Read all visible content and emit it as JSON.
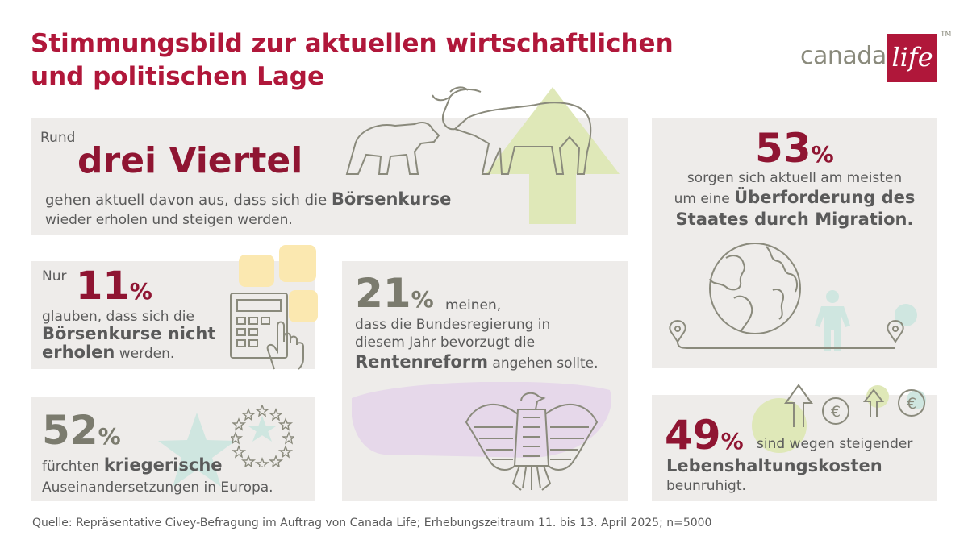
{
  "title": "Stimmungsbild zur aktuellen wirtschaftlichen und politischen Lage",
  "logo": {
    "text": "canada",
    "box": "life",
    "tm": "TM"
  },
  "card1": {
    "intro": "Rund",
    "headline": "drei Viertel",
    "line1": "gehen aktuell davon aus, dass sich die ",
    "line1_bold": "Börsenkurse",
    "line2": "wieder erholen und steigen werden."
  },
  "card2": {
    "intro": "Nur",
    "number": "11",
    "pct": "%",
    "line1": "glauben, dass sich die",
    "bold1": "Börsenkurse nicht",
    "bold2": "erholen",
    "line3": " werden."
  },
  "card3": {
    "number": "21",
    "pct": "%",
    "after": "meinen,",
    "line1": "dass die Bundesregierung in",
    "line2": "diesem Jahr bevorzugt die",
    "bold": "Rentenreform",
    "line3": " angehen sollte."
  },
  "card4": {
    "number": "52",
    "pct": "%",
    "line1": "fürchten ",
    "bold": "kriegerische",
    "line2": "Auseinandersetzungen in Europa."
  },
  "card5": {
    "number": "53",
    "pct": "%",
    "line1": "sorgen sich aktuell am meisten",
    "line2": "um eine ",
    "bold1": "Überforderung des",
    "bold2": "Staates durch Migration."
  },
  "card6": {
    "number": "49",
    "pct": "%",
    "after": "sind wegen steigender",
    "bold": "Lebenshaltungskosten",
    "line2": "beunruhigt."
  },
  "source": "Quelle: Repräsentative Civey-Befragung im Auftrag von Canada Life; Erhebungszeitraum 11. bis 13. April 2025; n=5000",
  "colors": {
    "brand_red": "#b0173a",
    "dark_red": "#8f1532",
    "card_bg": "#eeecea",
    "text_grey": "#5a5a5a",
    "green_light": "#dfe8b8",
    "mint": "#cfe6e0",
    "lavender": "#e6d8ea",
    "yellow_light": "#fbe8b0"
  },
  "icons": [
    "bear-icon",
    "bull-icon",
    "arrow-up-icon",
    "calculator-icon",
    "hand-pointer-icon",
    "star-icon",
    "eu-stars-icon",
    "eagle-icon",
    "globe-icon",
    "person-icon",
    "location-pin-icon",
    "euro-coin-icon"
  ]
}
